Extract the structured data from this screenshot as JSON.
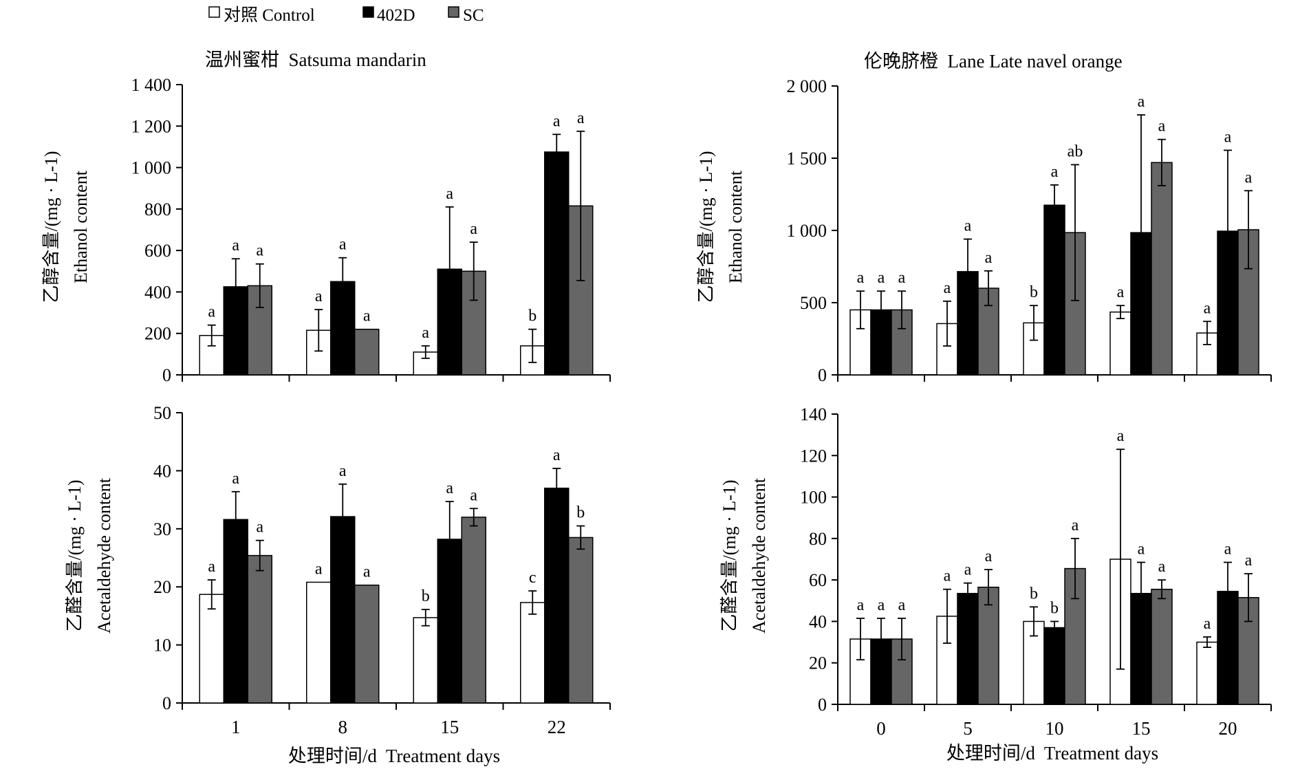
{
  "legend": {
    "items": [
      {
        "label": "对照 Control",
        "color": "#ffffff"
      },
      {
        "label": "402D",
        "color": "#000000"
      },
      {
        "label": "SC",
        "color": "#666666"
      }
    ],
    "placement": "top-left"
  },
  "columns": [
    {
      "title": "温州蜜柑  Satsuma mandarin"
    },
    {
      "title": "伦晚脐橙  Lane Late navel orange"
    }
  ],
  "xlabel": "处理时间/d  Treatment days",
  "chart_data": [
    {
      "type": "bar",
      "title": "温州蜜柑  Satsuma mandarin",
      "ylabel_cn": "乙醇含量/(mg · L-1)",
      "ylabel_en": "Ethanol content",
      "xlabel": "",
      "categories": [
        "1",
        "8",
        "15",
        "22"
      ],
      "ylim": [
        0,
        1400
      ],
      "yticks": [
        0,
        200,
        400,
        600,
        800,
        1000,
        1200,
        1400
      ],
      "ytick_labels": [
        "0",
        "200",
        "400",
        "600",
        "800",
        "1 000",
        "1 200",
        "1 400"
      ],
      "series": [
        {
          "name": "对照 Control",
          "color": "#ffffff",
          "values": [
            190,
            215,
            110,
            140
          ],
          "errors": [
            50,
            100,
            30,
            80
          ],
          "letters": [
            "a",
            "a",
            "a",
            "b"
          ]
        },
        {
          "name": "402D",
          "color": "#000000",
          "values": [
            425,
            450,
            510,
            1075
          ],
          "errors": [
            135,
            115,
            300,
            85
          ],
          "letters": [
            "a",
            "a",
            "a",
            "a"
          ]
        },
        {
          "name": "SC",
          "color": "#666666",
          "values": [
            430,
            220,
            500,
            815
          ],
          "errors": [
            105,
            0,
            140,
            360
          ],
          "letters": [
            "a",
            "a",
            "a",
            "a"
          ]
        }
      ]
    },
    {
      "type": "bar",
      "title": "伦晚脐橙  Lane Late navel orange",
      "ylabel_cn": "乙醇含量/(mg · L-1)",
      "ylabel_en": "Ethanol content",
      "xlabel": "",
      "categories": [
        "0",
        "5",
        "10",
        "15",
        "20"
      ],
      "ylim": [
        0,
        2000
      ],
      "yticks": [
        0,
        500,
        1000,
        1500,
        2000
      ],
      "ytick_labels": [
        "0",
        "500",
        "1 000",
        "1 500",
        "2 000"
      ],
      "series": [
        {
          "name": "对照 Control",
          "color": "#ffffff",
          "values": [
            450,
            355,
            360,
            435,
            290
          ],
          "errors": [
            130,
            155,
            120,
            45,
            80
          ],
          "letters": [
            "a",
            "a",
            "b",
            "a",
            "a"
          ]
        },
        {
          "name": "402D",
          "color": "#000000",
          "values": [
            450,
            715,
            1175,
            985,
            995
          ],
          "errors": [
            130,
            225,
            140,
            815,
            560
          ],
          "letters": [
            "a",
            "a",
            "a",
            "a",
            "a"
          ]
        },
        {
          "name": "SC",
          "color": "#666666",
          "values": [
            450,
            600,
            985,
            1470,
            1005
          ],
          "errors": [
            130,
            120,
            470,
            160,
            270
          ],
          "letters": [
            "a",
            "a",
            "ab",
            "a",
            "a"
          ]
        }
      ]
    },
    {
      "type": "bar",
      "title": "",
      "ylabel_cn": "乙醛含量/(mg · L-1)",
      "ylabel_en": "Acetaldehyde content",
      "xlabel": "处理时间/d  Treatment days",
      "categories": [
        "1",
        "8",
        "15",
        "22"
      ],
      "ylim": [
        0,
        50
      ],
      "yticks": [
        0,
        10,
        20,
        30,
        40,
        50
      ],
      "ytick_labels": [
        "0",
        "10",
        "20",
        "30",
        "40",
        "50"
      ],
      "series": [
        {
          "name": "对照 Control",
          "color": "#ffffff",
          "values": [
            18.7,
            20.8,
            14.7,
            17.3
          ],
          "errors": [
            2.5,
            0,
            1.4,
            2.0
          ],
          "letters": [
            "a",
            "a",
            "b",
            "c"
          ]
        },
        {
          "name": "402D",
          "color": "#000000",
          "values": [
            31.6,
            32.1,
            28.2,
            37.0
          ],
          "errors": [
            4.8,
            5.6,
            6.5,
            3.4
          ],
          "letters": [
            "a",
            "a",
            "a",
            "a"
          ]
        },
        {
          "name": "SC",
          "color": "#666666",
          "values": [
            25.4,
            20.3,
            32.0,
            28.5
          ],
          "errors": [
            2.6,
            0,
            1.5,
            2.0
          ],
          "letters": [
            "a",
            "a",
            "a",
            "b"
          ]
        }
      ]
    },
    {
      "type": "bar",
      "title": "",
      "ylabel_cn": "乙醛含量/(mg · L-1)",
      "ylabel_en": "Acetaldehyde content",
      "xlabel": "处理时间/d  Treatment days",
      "categories": [
        "0",
        "5",
        "10",
        "15",
        "20"
      ],
      "ylim": [
        0,
        140
      ],
      "yticks": [
        0,
        20,
        40,
        60,
        80,
        100,
        120,
        140
      ],
      "ytick_labels": [
        "0",
        "20",
        "40",
        "60",
        "80",
        "100",
        "120",
        "140"
      ],
      "series": [
        {
          "name": "对照 Control",
          "color": "#ffffff",
          "values": [
            31.5,
            42.5,
            40.0,
            70.0,
            30.0
          ],
          "errors": [
            10,
            13,
            7,
            53,
            2.5
          ],
          "letters": [
            "a",
            "a",
            "b",
            "a",
            "a"
          ]
        },
        {
          "name": "402D",
          "color": "#000000",
          "values": [
            31.5,
            53.5,
            37.0,
            53.5,
            54.5
          ],
          "errors": [
            10,
            5,
            3,
            15,
            14
          ],
          "letters": [
            "a",
            "a",
            "b",
            "a",
            "a"
          ]
        },
        {
          "name": "SC",
          "color": "#666666",
          "values": [
            31.5,
            56.5,
            65.5,
            55.5,
            51.5
          ],
          "errors": [
            10,
            8.5,
            14.5,
            4.5,
            11.5
          ],
          "letters": [
            "a",
            "a",
            "a",
            "a",
            "a"
          ]
        }
      ]
    }
  ]
}
